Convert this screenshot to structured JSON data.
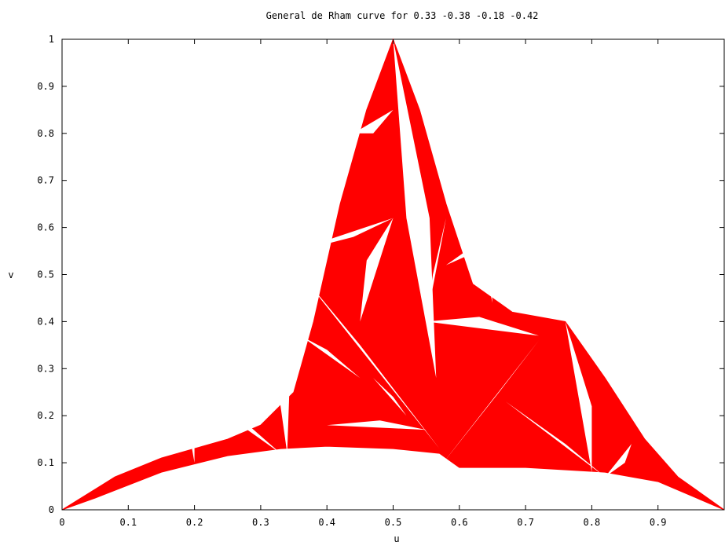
{
  "chart_data": {
    "type": "scatter",
    "title": "General de Rham curve for 0.33 -0.38 -0.18 -0.42",
    "xlabel": "u",
    "ylabel": "v",
    "xlim": [
      0,
      1
    ],
    "ylim": [
      0,
      1
    ],
    "xticks": [
      "0",
      "0.1",
      "0.2",
      "0.3",
      "0.4",
      "0.5",
      "0.6",
      "0.7",
      "0.8",
      "0.9"
    ],
    "yticks": [
      "0",
      "0.1",
      "0.2",
      "0.3",
      "0.4",
      "0.5",
      "0.6",
      "0.7",
      "0.8",
      "0.9",
      "1"
    ],
    "grid": false,
    "series": [
      {
        "color": "#ff0000",
        "outline": [
          [
            0,
            0
          ],
          [
            0.08,
            0.07
          ],
          [
            0.15,
            0.11
          ],
          [
            0.2,
            0.13
          ],
          [
            0.25,
            0.15
          ],
          [
            0.3,
            0.18
          ],
          [
            0.35,
            0.25
          ],
          [
            0.38,
            0.4
          ],
          [
            0.42,
            0.65
          ],
          [
            0.46,
            0.85
          ],
          [
            0.5,
            1.0
          ],
          [
            0.54,
            0.85
          ],
          [
            0.58,
            0.65
          ],
          [
            0.62,
            0.48
          ],
          [
            0.68,
            0.42
          ],
          [
            0.76,
            0.4
          ],
          [
            0.82,
            0.28
          ],
          [
            0.88,
            0.15
          ],
          [
            0.93,
            0.07
          ],
          [
            1,
            0
          ],
          [
            0.9,
            0.06
          ],
          [
            0.82,
            0.08
          ],
          [
            0.7,
            0.09
          ],
          [
            0.6,
            0.09
          ],
          [
            0.57,
            0.12
          ],
          [
            0.5,
            0.13
          ],
          [
            0.4,
            0.135
          ],
          [
            0.33,
            0.13
          ],
          [
            0.25,
            0.115
          ],
          [
            0.15,
            0.08
          ],
          [
            0.05,
            0.025
          ],
          [
            0,
            0
          ]
        ]
      }
    ],
    "gaps": [
      [
        [
          0.5,
          1.0
        ],
        [
          0.555,
          0.62
        ],
        [
          0.565,
          0.28
        ],
        [
          0.52,
          0.62
        ]
      ],
      [
        [
          0.5,
          0.62
        ],
        [
          0.33,
          0.54
        ],
        [
          0.44,
          0.58
        ]
      ],
      [
        [
          0.5,
          0.62
        ],
        [
          0.45,
          0.4
        ],
        [
          0.46,
          0.53
        ]
      ],
      [
        [
          0.55,
          0.4
        ],
        [
          0.72,
          0.37
        ],
        [
          0.63,
          0.41
        ]
      ],
      [
        [
          0.55,
          0.4
        ],
        [
          0.58,
          0.62
        ],
        [
          0.56,
          0.5
        ]
      ],
      [
        [
          0.35,
          0.52
        ],
        [
          0.57,
          0.13
        ],
        [
          0.45,
          0.35
        ]
      ],
      [
        [
          0.35,
          0.52
        ],
        [
          0.34,
          0.12
        ],
        [
          0.32,
          0.32
        ]
      ],
      [
        [
          0.57,
          0.09
        ],
        [
          0.72,
          0.36
        ],
        [
          0.66,
          0.25
        ]
      ],
      [
        [
          0.44,
          0.8
        ],
        [
          0.5,
          0.85
        ],
        [
          0.47,
          0.8
        ]
      ],
      [
        [
          0.2,
          0.28
        ],
        [
          0.32,
          0.33
        ],
        [
          0.27,
          0.32
        ]
      ],
      [
        [
          0.2,
          0.28
        ],
        [
          0.33,
          0.12
        ],
        [
          0.27,
          0.18
        ]
      ],
      [
        [
          0.2,
          0.1
        ],
        [
          0.2,
          0.29
        ],
        [
          0.19,
          0.18
        ]
      ],
      [
        [
          0.76,
          0.4
        ],
        [
          0.8,
          0.08
        ],
        [
          0.8,
          0.22
        ]
      ],
      [
        [
          0.62,
          0.62
        ],
        [
          0.65,
          0.44
        ],
        [
          0.645,
          0.53
        ]
      ],
      [
        [
          0.67,
          0.23
        ],
        [
          0.82,
          0.07
        ],
        [
          0.76,
          0.14
        ]
      ],
      [
        [
          0.12,
          0.16
        ],
        [
          0.2,
          0.1
        ],
        [
          0.16,
          0.13
        ]
      ],
      [
        [
          0.82,
          0.07
        ],
        [
          0.86,
          0.14
        ],
        [
          0.85,
          0.1
        ]
      ],
      [
        [
          0.4,
          0.18
        ],
        [
          0.55,
          0.17
        ],
        [
          0.48,
          0.19
        ]
      ],
      [
        [
          0.36,
          0.37
        ],
        [
          0.45,
          0.28
        ],
        [
          0.4,
          0.34
        ]
      ],
      [
        [
          0.47,
          0.28
        ],
        [
          0.52,
          0.2
        ],
        [
          0.5,
          0.24
        ]
      ],
      [
        [
          0.58,
          0.52
        ],
        [
          0.66,
          0.57
        ],
        [
          0.62,
          0.56
        ]
      ]
    ]
  }
}
